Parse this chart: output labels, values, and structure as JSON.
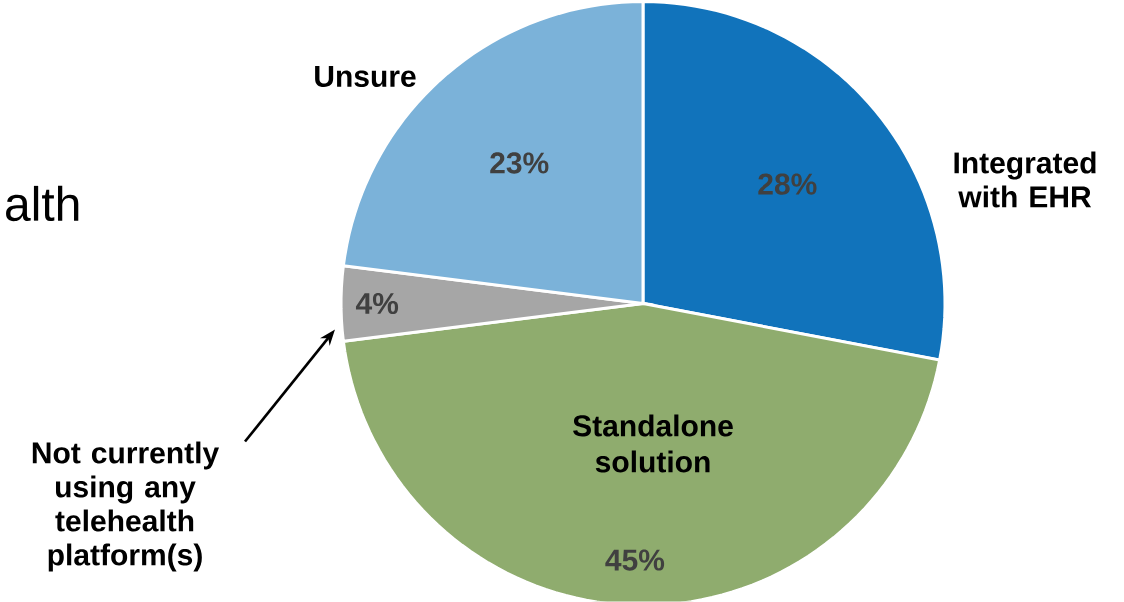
{
  "chart_data": {
    "type": "pie",
    "categories": [
      "Integrated with EHR",
      "Standalone solution",
      "Not currently using any telehealth platform(s)",
      "Unsure"
    ],
    "values": [
      28,
      45,
      4,
      23
    ],
    "colors": [
      "#1173bb",
      "#8fac6e",
      "#a6a6a6",
      "#7bb2d9"
    ],
    "value_labels": [
      "28%",
      "45%",
      "4%",
      "23%"
    ],
    "annotations": [
      "alth"
    ]
  }
}
